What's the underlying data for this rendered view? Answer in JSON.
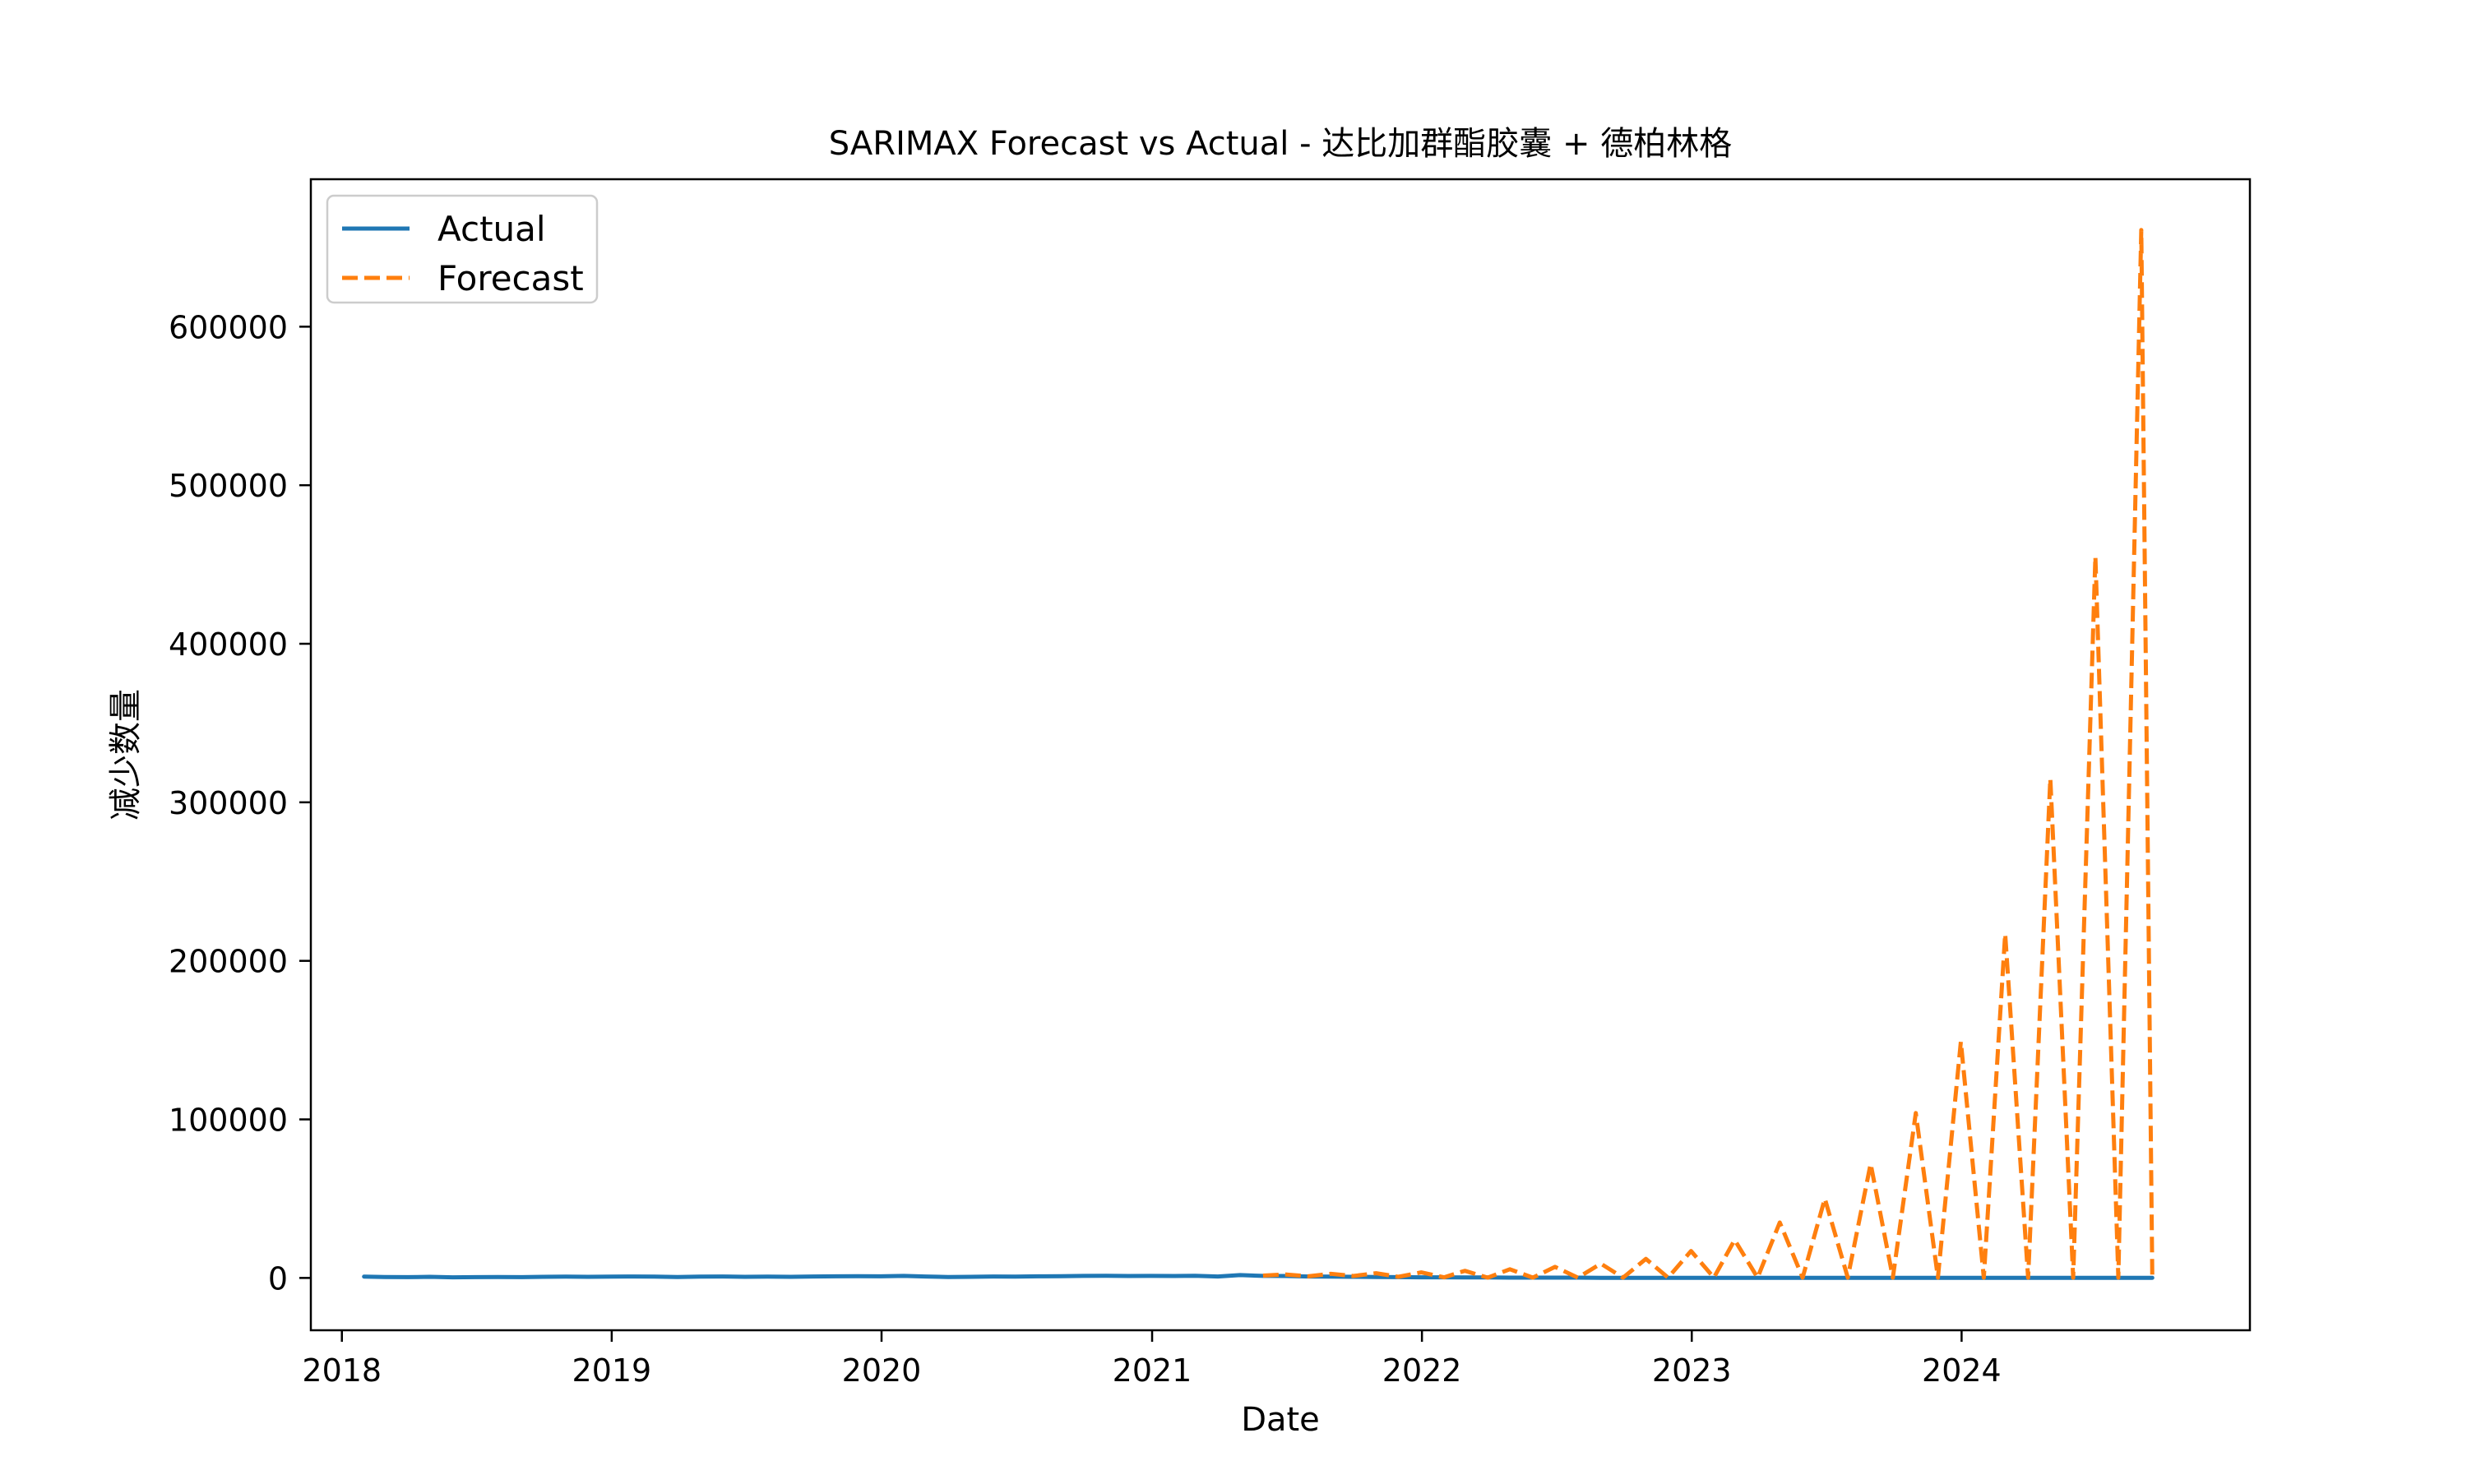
{
  "chart_data": {
    "type": "line",
    "title": "SARIMAX Forecast vs Actual - 达比加群酯胶囊 + 德柏林格",
    "xlabel": "Date",
    "ylabel": "减少数量",
    "x_axis": {
      "type": "date",
      "range": [
        "2017-11-20",
        "2025-01-25"
      ],
      "ticks": [
        "2018",
        "2019",
        "2020",
        "2021",
        "2022",
        "2023",
        "2024"
      ]
    },
    "y_axis": {
      "range": [
        -33000,
        693000
      ],
      "ticks": [
        0,
        100000,
        200000,
        300000,
        400000,
        500000,
        600000
      ],
      "tick_labels": [
        "0",
        "100000",
        "200000",
        "300000",
        "400000",
        "500000",
        "600000"
      ]
    },
    "grid": false,
    "legend": {
      "placement": "top-left",
      "entries": [
        "Actual",
        "Forecast"
      ]
    },
    "series": [
      {
        "name": "Actual",
        "color": "#1f77b4",
        "style": "solid",
        "points": [
          [
            "2018-01-31",
            800
          ],
          [
            "2018-02-28",
            600
          ],
          [
            "2018-03-31",
            500
          ],
          [
            "2018-04-30",
            700
          ],
          [
            "2018-05-31",
            400
          ],
          [
            "2018-06-30",
            500
          ],
          [
            "2018-07-31",
            600
          ],
          [
            "2018-08-31",
            500
          ],
          [
            "2018-09-30",
            700
          ],
          [
            "2018-10-31",
            800
          ],
          [
            "2018-11-30",
            700
          ],
          [
            "2018-12-31",
            800
          ],
          [
            "2019-01-31",
            900
          ],
          [
            "2019-02-28",
            800
          ],
          [
            "2019-03-31",
            600
          ],
          [
            "2019-04-30",
            800
          ],
          [
            "2019-05-31",
            900
          ],
          [
            "2019-06-30",
            700
          ],
          [
            "2019-07-31",
            800
          ],
          [
            "2019-08-31",
            700
          ],
          [
            "2019-09-30",
            900
          ],
          [
            "2019-10-31",
            1000
          ],
          [
            "2019-11-30",
            1100
          ],
          [
            "2019-12-31",
            1000
          ],
          [
            "2020-01-31",
            1300
          ],
          [
            "2020-02-29",
            900
          ],
          [
            "2020-03-31",
            600
          ],
          [
            "2020-04-30",
            700
          ],
          [
            "2020-05-31",
            900
          ],
          [
            "2020-06-30",
            800
          ],
          [
            "2020-07-31",
            1000
          ],
          [
            "2020-08-31",
            1100
          ],
          [
            "2020-09-30",
            1300
          ],
          [
            "2020-10-31",
            1400
          ],
          [
            "2020-11-30",
            1200
          ],
          [
            "2020-12-31",
            1300
          ],
          [
            "2021-01-31",
            1200
          ],
          [
            "2021-02-28",
            1400
          ],
          [
            "2021-03-31",
            900
          ],
          [
            "2021-04-30",
            1800
          ],
          [
            "2021-05-31",
            1300
          ],
          [
            "2021-06-30",
            1200
          ],
          [
            "2021-07-31",
            900
          ],
          [
            "2021-08-31",
            800
          ],
          [
            "2021-09-30",
            700
          ],
          [
            "2021-10-31",
            600
          ],
          [
            "2021-11-30",
            500
          ],
          [
            "2021-12-31",
            400
          ],
          [
            "2022-01-31",
            400
          ],
          [
            "2022-02-28",
            300
          ],
          [
            "2022-03-31",
            300
          ],
          [
            "2022-04-30",
            200
          ],
          [
            "2022-05-31",
            200
          ],
          [
            "2022-06-30",
            200
          ],
          [
            "2022-07-31",
            200
          ],
          [
            "2022-08-31",
            100
          ],
          [
            "2022-09-30",
            100
          ],
          [
            "2022-10-31",
            100
          ],
          [
            "2022-11-30",
            100
          ],
          [
            "2022-12-31",
            100
          ],
          [
            "2023-01-31",
            100
          ],
          [
            "2023-02-28",
            100
          ],
          [
            "2023-03-31",
            100
          ],
          [
            "2023-04-30",
            100
          ],
          [
            "2023-05-31",
            100
          ],
          [
            "2023-06-30",
            100
          ],
          [
            "2023-07-31",
            100
          ],
          [
            "2023-08-31",
            100
          ],
          [
            "2023-09-30",
            100
          ],
          [
            "2023-10-31",
            100
          ],
          [
            "2023-11-30",
            100
          ],
          [
            "2023-12-31",
            100
          ],
          [
            "2024-01-31",
            100
          ],
          [
            "2024-02-29",
            100
          ],
          [
            "2024-03-31",
            100
          ],
          [
            "2024-04-30",
            100
          ],
          [
            "2024-05-31",
            100
          ],
          [
            "2024-06-30",
            100
          ],
          [
            "2024-07-31",
            100
          ],
          [
            "2024-08-31",
            100
          ],
          [
            "2024-09-15",
            100
          ]
        ]
      },
      {
        "name": "Forecast",
        "color": "#ff7f0e",
        "style": "dashed",
        "points": [
          [
            "2021-05-31",
            1500
          ],
          [
            "2021-06-30",
            2200
          ],
          [
            "2021-07-31",
            1000
          ],
          [
            "2021-08-31",
            2600
          ],
          [
            "2021-09-30",
            1200
          ],
          [
            "2021-10-31",
            3000
          ],
          [
            "2021-11-30",
            700
          ],
          [
            "2021-12-31",
            3500
          ],
          [
            "2022-01-31",
            400
          ],
          [
            "2022-02-28",
            4500
          ],
          [
            "2022-03-31",
            200
          ],
          [
            "2022-04-30",
            5500
          ],
          [
            "2022-05-31",
            200
          ],
          [
            "2022-06-30",
            7000
          ],
          [
            "2022-07-31",
            200
          ],
          [
            "2022-08-31",
            9000
          ],
          [
            "2022-09-30",
            200
          ],
          [
            "2022-10-31",
            12000
          ],
          [
            "2022-11-30",
            200
          ],
          [
            "2022-12-31",
            17000
          ],
          [
            "2023-01-31",
            200
          ],
          [
            "2023-02-28",
            24000
          ],
          [
            "2023-03-31",
            200
          ],
          [
            "2023-04-30",
            35000
          ],
          [
            "2023-05-31",
            200
          ],
          [
            "2023-06-30",
            50000
          ],
          [
            "2023-07-31",
            200
          ],
          [
            "2023-08-31",
            72000
          ],
          [
            "2023-09-30",
            200
          ],
          [
            "2023-10-31",
            104000
          ],
          [
            "2023-11-30",
            200
          ],
          [
            "2023-12-31",
            149000
          ],
          [
            "2024-01-31",
            200
          ],
          [
            "2024-02-29",
            217000
          ],
          [
            "2024-03-31",
            200
          ],
          [
            "2024-04-30",
            315000
          ],
          [
            "2024-05-31",
            200
          ],
          [
            "2024-06-30",
            455000
          ],
          [
            "2024-07-31",
            200
          ],
          [
            "2024-08-31",
            661000
          ],
          [
            "2024-09-15",
            200
          ]
        ]
      }
    ]
  }
}
